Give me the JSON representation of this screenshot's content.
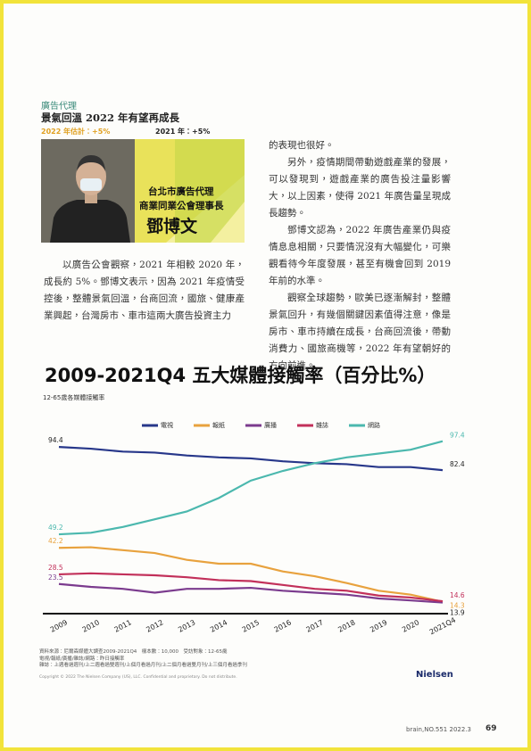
{
  "article": {
    "section": "廣告代理",
    "headline": "景氣回溫 2022 年有望再成長",
    "estimate_2022": "2022 年估計：+5%",
    "actual_2021": "2021 年：+5%",
    "caption": [
      "台北市廣告代理",
      "商業同業公會理事長",
      "鄧博文"
    ],
    "left_paragraphs": [
      "以廣告公會觀察，2021 年相較 2020 年，成長約 5%。鄧博文表示，因為 2021 年疫情受控後，整體景氣回溫，台商回流，國旅、健康產業興起，台灣房市、車市這兩大廣告投資主力"
    ],
    "right_paragraphs": [
      "的表現也很好。",
      "另外，疫情期間帶動遊戲產業的發展，可以發現到，遊戲產業的廣告投注量影響大，以上因素，使得 2021 年廣告量呈現成長趨勢。",
      "鄧博文認為，2022 年廣告產業仍與疫情息息相關，只要情況沒有大幅變化，可樂觀看待今年度發展，甚至有機會回到 2019 年前的水準。",
      "觀察全球趨勢，歐美已逐漸解封，整體景氣回升，有幾個關鍵因素值得注意，像是房市、車市持續在成長，台商回流後，帶動消費力、國旅商機等，2022 年有望朝好的方向前進。"
    ]
  },
  "chart_data": {
    "type": "line",
    "title": "2009-2021Q4 五大媒體接觸率（百分比%）",
    "subtitle": "12-65歲各媒體接觸率",
    "categories": [
      "2009",
      "2010",
      "2011",
      "2012",
      "2013",
      "2014",
      "2015",
      "2016",
      "2017",
      "2018",
      "2019",
      "2020",
      "2021Q4"
    ],
    "ylim": [
      10,
      100
    ],
    "series": [
      {
        "name": "電視",
        "color": "#27378a",
        "values": [
          94.4,
          93.5,
          92,
          91.5,
          90,
          89,
          88.5,
          87,
          86,
          85.5,
          84,
          84,
          82.4
        ]
      },
      {
        "name": "報紙",
        "color": "#e8a23e",
        "values": [
          42.2,
          42.5,
          41,
          39.5,
          36,
          34,
          34,
          30,
          27.5,
          24,
          20,
          18,
          14.3
        ]
      },
      {
        "name": "廣播",
        "color": "#7b3b8e",
        "values": [
          23.5,
          22,
          21,
          19,
          21,
          21,
          21.5,
          20,
          19,
          18,
          16,
          15,
          13.9
        ]
      },
      {
        "name": "雜誌",
        "color": "#c2305a",
        "values": [
          28.5,
          29,
          28.5,
          28,
          27,
          25.5,
          25,
          23,
          21,
          20,
          17.5,
          16.5,
          14.6
        ]
      },
      {
        "name": "網路",
        "color": "#4bb8ae",
        "values": [
          49.2,
          50,
          53,
          57,
          61,
          68,
          77,
          82,
          86,
          89,
          91,
          93,
          97.4
        ]
      }
    ],
    "notes": [
      "資料來源：尼爾森媒體大調查2009-2021Q4　樣本數：10,000　受訪對象：12-65歲",
      "電視/報紙/廣播/雜誌/網路：昨日接觸率",
      "雜誌：上週看過週刊/上二週看過雙週刊/上個月看過月刊/上二個月看過雙月刊/上三個月看過季刊"
    ],
    "copyright": "Copyright © 2022 The Nielsen Company (US), LLC. Confidential and proprietary. Do not distribute.",
    "brand": "Nielsen"
  },
  "footer": {
    "issue": "brain,NO.551  2022.3",
    "page": "69"
  }
}
